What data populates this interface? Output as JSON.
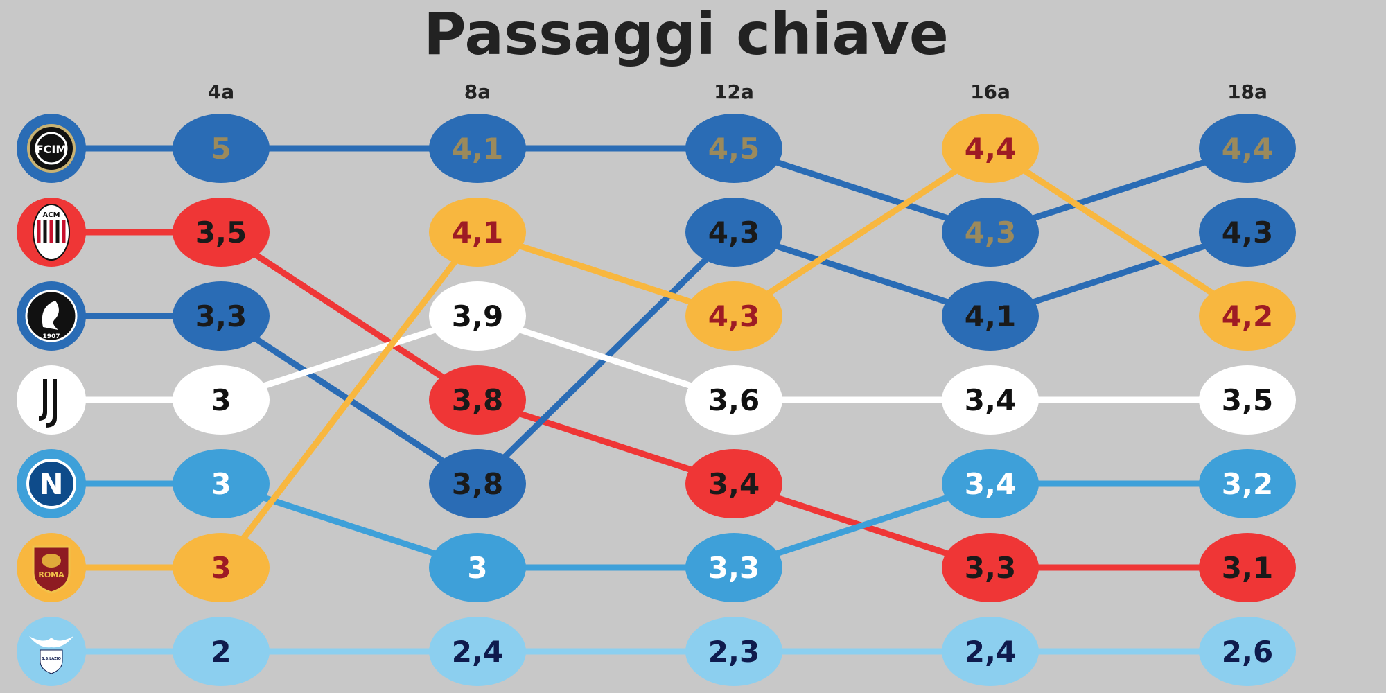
{
  "chart_data": {
    "type": "bump",
    "title": "Passaggi chiave",
    "categories": [
      "4a",
      "8a",
      "12a",
      "16a",
      "18a"
    ],
    "series": [
      {
        "team": "inter",
        "color": "#2a6cb5",
        "textColor": "#9b8a5c",
        "logo": {
          "bg": "#2a6cb5",
          "inner": "#1a1a1a",
          "text": "FCIM"
        },
        "ranks": [
          1,
          1,
          1,
          2,
          1
        ],
        "labels": [
          "5",
          "4,1",
          "4,5",
          "4,3",
          "4,4"
        ]
      },
      {
        "team": "milan",
        "color": "#ef3636",
        "textColor": "#1a1a1a",
        "logo": {
          "bg": "#ef3636",
          "inner": "#c7102e",
          "text": "ACM"
        },
        "ranks": [
          2,
          4,
          5,
          6,
          6
        ],
        "labels": [
          "3,5",
          "3,8",
          "3,4",
          "3,3",
          "3,1"
        ]
      },
      {
        "team": "atalanta",
        "color": "#2a6cb5",
        "textColor": "#1a1a1a",
        "logo": {
          "bg": "#2a6cb5",
          "inner": "#101010",
          "text": "1907"
        },
        "ranks": [
          3,
          5,
          2,
          3,
          2
        ],
        "labels": [
          "3,3",
          "3,8",
          "4,3",
          "4,1",
          "4,3"
        ]
      },
      {
        "team": "juventus",
        "color": "#ffffff",
        "textColor": "#111111",
        "logo": {
          "bg": "#ffffff",
          "inner": "#ffffff",
          "text": "J"
        },
        "ranks": [
          4,
          3,
          4,
          4,
          4
        ],
        "labels": [
          "3",
          "3,9",
          "3,6",
          "3,4",
          "3,5"
        ]
      },
      {
        "team": "napoli",
        "color": "#3ea0d9",
        "textColor": "#ffffff",
        "logo": {
          "bg": "#3ea0d9",
          "inner": "#0e4b8a",
          "text": "N"
        },
        "ranks": [
          5,
          6,
          6,
          5,
          5
        ],
        "labels": [
          "3",
          "3",
          "3,3",
          "3,4",
          "3,2"
        ]
      },
      {
        "team": "roma",
        "color": "#f8b73f",
        "textColor": "#9e1b24",
        "logo": {
          "bg": "#f8b73f",
          "inner": "#8e1b22",
          "text": "ROMA"
        },
        "ranks": [
          6,
          2,
          3,
          1,
          3
        ],
        "labels": [
          "3",
          "4,1",
          "4,3",
          "4,4",
          "4,2"
        ]
      },
      {
        "team": "lazio",
        "color": "#8ccfef",
        "textColor": "#0f1b4d",
        "logo": {
          "bg": "#8ccfef",
          "inner": "#8ccfef",
          "text": "S.S.LAZIO"
        },
        "ranks": [
          7,
          7,
          7,
          7,
          7
        ],
        "labels": [
          "2",
          "2,4",
          "2,3",
          "2,4",
          "2,6"
        ]
      }
    ]
  }
}
